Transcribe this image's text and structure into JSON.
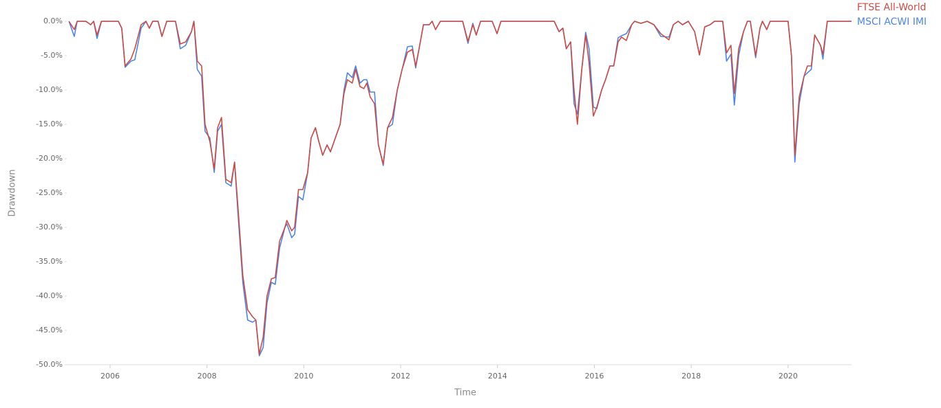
{
  "chart_data": {
    "type": "line",
    "x_label": "Time",
    "y_label": "Drawdown",
    "x": [
      2005.15,
      2005.26,
      2005.32,
      2005.5,
      2005.6,
      2005.66,
      2005.73,
      2005.82,
      2006.17,
      2006.24,
      2006.31,
      2006.43,
      2006.51,
      2006.64,
      2006.74,
      2006.81,
      2006.88,
      2006.99,
      2007.07,
      2007.17,
      2007.35,
      2007.45,
      2007.56,
      2007.68,
      2007.73,
      2007.8,
      2007.89,
      2007.96,
      2008.06,
      2008.15,
      2008.22,
      2008.3,
      2008.39,
      2008.5,
      2008.57,
      2008.64,
      2008.74,
      2008.84,
      2008.94,
      2009.01,
      2009.08,
      2009.16,
      2009.24,
      2009.33,
      2009.41,
      2009.5,
      2009.61,
      2009.65,
      2009.75,
      2009.81,
      2009.89,
      2009.98,
      2010.08,
      2010.15,
      2010.24,
      2010.31,
      2010.39,
      2010.48,
      2010.55,
      2010.65,
      2010.75,
      2010.83,
      2010.9,
      2011.0,
      2011.07,
      2011.16,
      2011.24,
      2011.3,
      2011.37,
      2011.46,
      2011.54,
      2011.64,
      2011.73,
      2011.83,
      2011.93,
      2012.03,
      2012.14,
      2012.24,
      2012.31,
      2012.38,
      2012.47,
      2012.59,
      2012.65,
      2012.72,
      2012.82,
      2013.28,
      2013.39,
      2013.49,
      2013.56,
      2013.65,
      2013.89,
      2013.99,
      2014.07,
      2015.17,
      2015.27,
      2015.35,
      2015.42,
      2015.51,
      2015.58,
      2015.65,
      2015.74,
      2015.82,
      2015.89,
      2015.98,
      2016.05,
      2016.15,
      2016.23,
      2016.32,
      2016.4,
      2016.49,
      2016.56,
      2016.66,
      2016.77,
      2016.83,
      2016.96,
      2017.09,
      2017.23,
      2017.37,
      2017.54,
      2017.63,
      2017.73,
      2017.82,
      2017.94,
      2018.07,
      2018.17,
      2018.28,
      2018.39,
      2018.48,
      2018.65,
      2018.73,
      2018.82,
      2018.89,
      2018.98,
      2019.08,
      2019.16,
      2019.22,
      2019.33,
      2019.42,
      2019.47,
      2019.56,
      2019.63,
      2020.0,
      2020.07,
      2020.14,
      2020.23,
      2020.33,
      2020.4,
      2020.48,
      2020.55,
      2020.67,
      2020.72,
      2020.81,
      2021.31
    ],
    "series": [
      {
        "name": "MSCI ACWI IMI",
        "color": "#4a86e8",
        "values": [
          0,
          -2.2,
          0,
          0,
          -0.5,
          0,
          -2.5,
          0,
          0,
          -1,
          -6.7,
          -5.8,
          -5.6,
          -1,
          0,
          -1,
          0,
          0,
          -2.2,
          0,
          0,
          -4,
          -3.5,
          -1.5,
          0,
          -7,
          -8,
          -16,
          -17,
          -22,
          -16,
          -15,
          -23.5,
          -24,
          -20.5,
          -28,
          -38,
          -43.5,
          -43.8,
          -43.5,
          -48.7,
          -47.5,
          -41,
          -38,
          -38.3,
          -33,
          -30,
          -29.5,
          -31.5,
          -31,
          -25.5,
          -26,
          -22,
          -17,
          -15.5,
          -17.5,
          -19.5,
          -18,
          -19,
          -17,
          -15,
          -10,
          -7.5,
          -8.2,
          -6.5,
          -9,
          -8.5,
          -8.5,
          -10.3,
          -10.3,
          -18,
          -21,
          -15.5,
          -15,
          -10,
          -7,
          -3.7,
          -3.6,
          -6.8,
          -4,
          -0.5,
          -0.5,
          0,
          -1.2,
          0,
          0,
          -3.2,
          -0.3,
          -2,
          0,
          0,
          -1.8,
          0,
          0,
          -1.5,
          -1,
          -4,
          -3,
          -12,
          -13.5,
          -7,
          -1.6,
          -4,
          -12.5,
          -12.7,
          -10,
          -8.5,
          -6.5,
          -6.5,
          -2.4,
          -2.1,
          -1.8,
          -0.5,
          0,
          -0.3,
          0,
          -0.5,
          -2.2,
          -2.3,
          -0.5,
          0,
          -0.5,
          0,
          -1.5,
          -4.9,
          -0.8,
          -0.5,
          0,
          0,
          -5.8,
          -4.8,
          -12.2,
          -5,
          -1.5,
          0,
          0,
          -5.3,
          -1,
          0,
          -1.2,
          0,
          0,
          -5,
          -20.5,
          -12,
          -8,
          -7.5,
          -7,
          -2,
          -3.5,
          -5.5,
          0,
          0
        ]
      },
      {
        "name": "FTSE All-World",
        "color": "#d04a44",
        "values": [
          0,
          -1.2,
          0,
          0,
          -0.5,
          0,
          -2,
          0,
          0,
          -1,
          -6.5,
          -5.5,
          -4,
          -0.5,
          0,
          -1,
          0,
          0,
          -2.2,
          0,
          0,
          -3.3,
          -3,
          -1.5,
          0,
          -5.8,
          -6.5,
          -15,
          -17.5,
          -21.5,
          -15.5,
          -14,
          -23,
          -23.5,
          -20.5,
          -27,
          -37,
          -42,
          -43,
          -43.5,
          -48.5,
          -46,
          -40,
          -37.5,
          -37.3,
          -32,
          -30,
          -29,
          -30.5,
          -30,
          -24.5,
          -24.5,
          -22,
          -17,
          -15.5,
          -17.5,
          -19.5,
          -18,
          -19,
          -17,
          -15,
          -10.5,
          -8.5,
          -9,
          -7,
          -9.5,
          -9.8,
          -9,
          -11,
          -12,
          -18,
          -20.8,
          -15.5,
          -14,
          -10,
          -7,
          -4.5,
          -4.1,
          -6.5,
          -4,
          -0.5,
          -0.5,
          0,
          -1.2,
          0,
          0,
          -2.9,
          -0.5,
          -2,
          0,
          0,
          -1.8,
          0,
          0,
          -1.5,
          -1,
          -4,
          -3,
          -10,
          -15,
          -7,
          -2,
          -6,
          -13.8,
          -12.5,
          -10,
          -8.5,
          -6.5,
          -6.5,
          -3,
          -2.3,
          -2.8,
          -0.5,
          0,
          -0.3,
          0,
          -0.5,
          -1.8,
          -2.7,
          -0.5,
          0,
          -0.5,
          0,
          -1.5,
          -4.9,
          -0.8,
          -0.5,
          0,
          0,
          -4.6,
          -3.5,
          -10.5,
          -4,
          -1.5,
          0,
          0,
          -5,
          -1,
          0,
          -1.2,
          0,
          0,
          -5,
          -19.5,
          -11,
          -8,
          -6.5,
          -6.5,
          -2,
          -3.5,
          -4.8,
          0,
          0
        ]
      }
    ],
    "xlim": [
      2005.105,
      2021.31
    ],
    "xticks": [
      2006,
      2008,
      2010,
      2012,
      2014,
      2016,
      2018,
      2020
    ],
    "ylim": [
      -50,
      0
    ],
    "yticks": [
      {
        "value": 0,
        "label": "0.0%"
      },
      {
        "value": -5,
        "label": "-5.0%"
      },
      {
        "value": -10,
        "label": "-10.0%"
      },
      {
        "value": -15,
        "label": "-15.0%"
      },
      {
        "value": -20,
        "label": "-20.0%"
      },
      {
        "value": -25,
        "label": "-25.0%"
      },
      {
        "value": -30,
        "label": "-30.0%"
      },
      {
        "value": -35,
        "label": "-35.0%"
      },
      {
        "value": -40,
        "label": "-40.0%"
      },
      {
        "value": -45,
        "label": "-45.0%"
      },
      {
        "value": -50,
        "label": "-50.0%"
      }
    ],
    "legend": "top-right"
  }
}
